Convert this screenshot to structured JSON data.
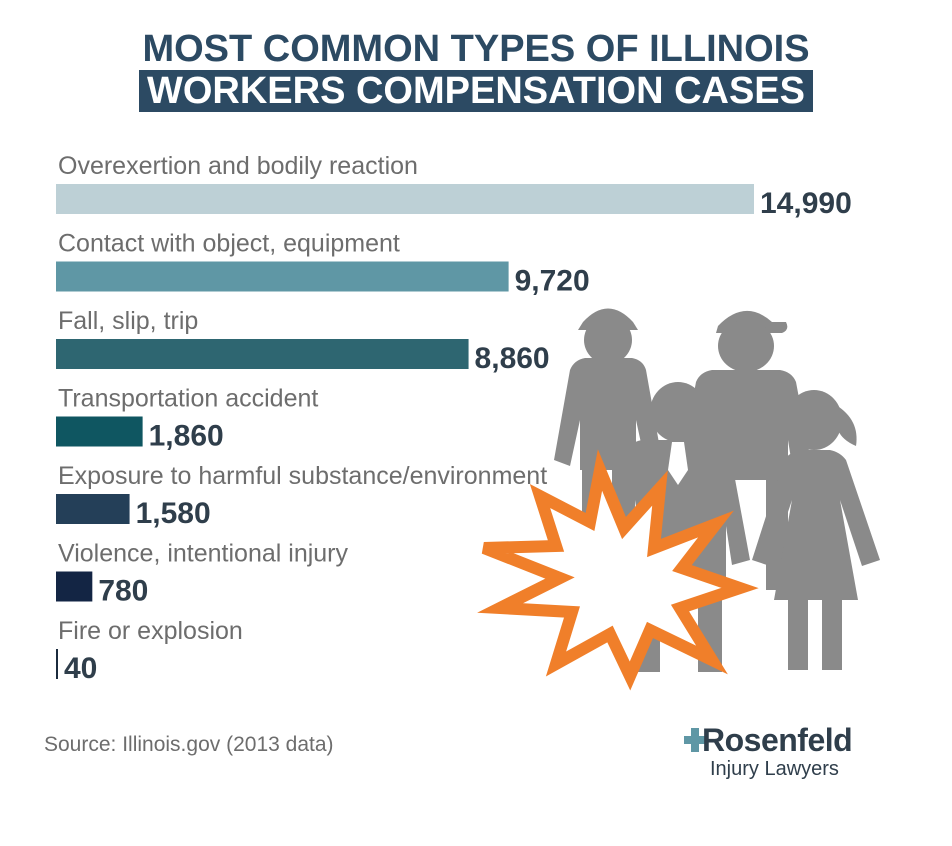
{
  "header": {
    "title_line1": "MOST COMMON TYPES OF ILLINOIS",
    "title_line2": "WORKERS COMPENSATION CASES"
  },
  "chart_data": {
    "type": "bar",
    "orientation": "horizontal",
    "categories": [
      "Overexertion and bodily reaction",
      "Contact with object, equipment",
      "Fall, slip, trip",
      "Transportation accident",
      "Exposure to harmful substance/environment",
      "Violence, intentional injury",
      "Fire or explosion"
    ],
    "values": [
      14990,
      9720,
      8860,
      1860,
      1580,
      780,
      40
    ],
    "value_labels": [
      "14,990",
      "9,720",
      "8,860",
      "1,860",
      "1,580",
      "780",
      "40"
    ],
    "bar_colors": [
      "#bdd0d6",
      "#5f97a5",
      "#2e6671",
      "#0f5661",
      "#243f58",
      "#132544",
      "#1b2b3d"
    ],
    "xlim": [
      0,
      14990
    ],
    "grid": false,
    "legend": "none"
  },
  "footer": {
    "source": "Source: Illinois.gov (2013 data)"
  },
  "logo": {
    "name": "Rosenfeld",
    "tagline": "Injury Lawyers"
  },
  "colors": {
    "title": "#2c4a63",
    "value_label": "#2f3e4b",
    "category_label": "#6d6d6d",
    "figures": "#8a8a8a",
    "burst": "#f07f2a"
  },
  "illustration": {
    "icons": [
      "hardhat-worker-icon",
      "cap-worker-icon",
      "office-worker-icon",
      "woman-worker-icon",
      "explosion-burst-icon"
    ]
  }
}
